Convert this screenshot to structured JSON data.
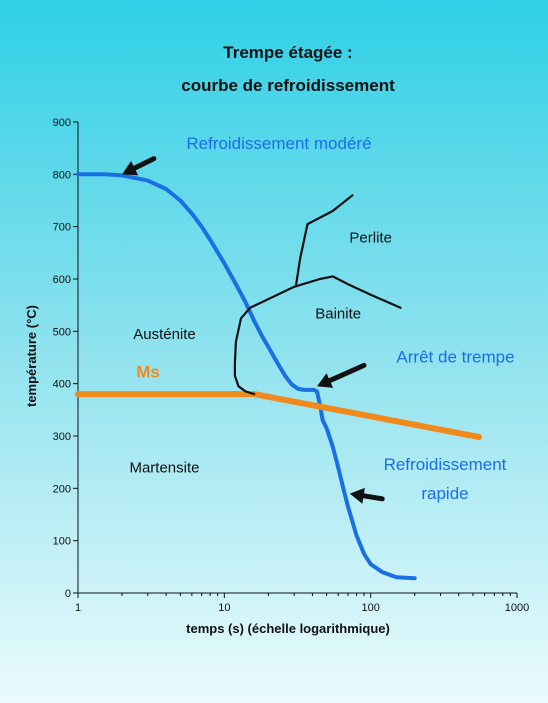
{
  "colors": {
    "background_top": "#2fd0e6",
    "background_bottom": "#eafbfd",
    "cooling_curve": "#1a6fe3",
    "ms_line": "#f18a1d",
    "tts_lines": "#111111",
    "arrows": "#111111"
  },
  "chart_data": {
    "type": "line",
    "title": [
      "Trempe étagée :",
      "courbe de refroidissement"
    ],
    "xlabel": "temps (s) (échelle logarithmique)",
    "ylabel": "température (°C)",
    "x_scale": "log",
    "xlim": [
      1,
      1000
    ],
    "ylim": [
      0,
      900
    ],
    "x_ticks": [
      {
        "value": 1,
        "label": "1"
      },
      {
        "value": 10,
        "label": "10"
      },
      {
        "value": 100,
        "label": "100"
      },
      {
        "value": 1000,
        "label": "1000"
      }
    ],
    "y_ticks": [
      0,
      100,
      200,
      300,
      400,
      500,
      600,
      700,
      800,
      900
    ],
    "grid": false,
    "series": [
      {
        "key": "cooling",
        "color": "#1a6fe3",
        "points": [
          [
            1,
            800
          ],
          [
            1.5,
            800
          ],
          [
            2,
            798
          ],
          [
            3,
            788
          ],
          [
            4,
            772
          ],
          [
            5,
            750
          ],
          [
            6,
            725
          ],
          [
            7,
            700
          ],
          [
            8,
            675
          ],
          [
            10,
            630
          ],
          [
            12,
            590
          ],
          [
            14,
            555
          ],
          [
            16,
            520
          ],
          [
            18,
            492
          ],
          [
            20,
            470
          ],
          [
            23,
            440
          ],
          [
            26,
            415
          ],
          [
            29,
            398
          ],
          [
            32,
            390
          ],
          [
            35,
            388
          ],
          [
            38,
            388
          ],
          [
            41,
            388
          ],
          [
            43,
            385
          ],
          [
            45,
            360
          ],
          [
            47,
            330
          ],
          [
            50,
            315
          ],
          [
            55,
            280
          ],
          [
            60,
            240
          ],
          [
            65,
            200
          ],
          [
            70,
            165
          ],
          [
            80,
            110
          ],
          [
            90,
            75
          ],
          [
            100,
            55
          ],
          [
            120,
            40
          ],
          [
            150,
            30
          ],
          [
            200,
            28
          ]
        ]
      },
      {
        "key": "ms",
        "name": "Ms",
        "color": "#f18a1d",
        "points": [
          [
            1,
            380
          ],
          [
            16,
            380
          ],
          [
            550,
            298
          ]
        ]
      },
      {
        "key": "tts_bainite",
        "color": "#111111",
        "points": [
          [
            30,
            585
          ],
          [
            45,
            600
          ],
          [
            55,
            605
          ],
          [
            70,
            590
          ],
          [
            100,
            570
          ],
          [
            160,
            545
          ]
        ]
      },
      {
        "key": "tts_nose",
        "color": "#111111",
        "points": [
          [
            30,
            585
          ],
          [
            15,
            545
          ],
          [
            13,
            525
          ],
          [
            12,
            480
          ],
          [
            11.8,
            440
          ],
          [
            11.8,
            415
          ],
          [
            12.5,
            395
          ],
          [
            14,
            385
          ],
          [
            16,
            380
          ]
        ]
      },
      {
        "key": "tts_perlite",
        "color": "#111111",
        "points": [
          [
            31,
            590
          ],
          [
            33,
            640
          ],
          [
            37,
            705
          ],
          [
            55,
            730
          ],
          [
            75,
            760
          ]
        ]
      }
    ],
    "regions": [
      {
        "key": "perlite",
        "label": "Perlite",
        "x": 100,
        "y": 670
      },
      {
        "key": "bainite",
        "label": "Bainite",
        "x": 60,
        "y": 525
      },
      {
        "key": "austenite",
        "label": "Austénite",
        "x": 3.9,
        "y": 485
      },
      {
        "key": "martensite",
        "label": "Martensite",
        "x": 3.9,
        "y": 230
      }
    ],
    "annotations": [
      {
        "key": "modere",
        "label": "Refroidissement modéré",
        "x": 5.5,
        "y": 848,
        "arrow_from": [
          3.3,
          830
        ],
        "arrow_to": [
          2,
          800
        ]
      },
      {
        "key": "arret",
        "label": "Arrêt de trempe",
        "x": 150,
        "y": 440,
        "arrow_from": [
          90,
          435
        ],
        "arrow_to": [
          43,
          395
        ]
      },
      {
        "key": "rapide1",
        "label": "Refroidissement",
        "x": 150,
        "y": 235
      },
      {
        "key": "rapide2",
        "label": "rapide",
        "x": 230,
        "y": 180,
        "arrow_from": [
          120,
          180
        ],
        "arrow_to": [
          72,
          190
        ]
      },
      {
        "key": "ms_label",
        "label": "Ms",
        "x": 2.5,
        "y": 412
      }
    ]
  }
}
